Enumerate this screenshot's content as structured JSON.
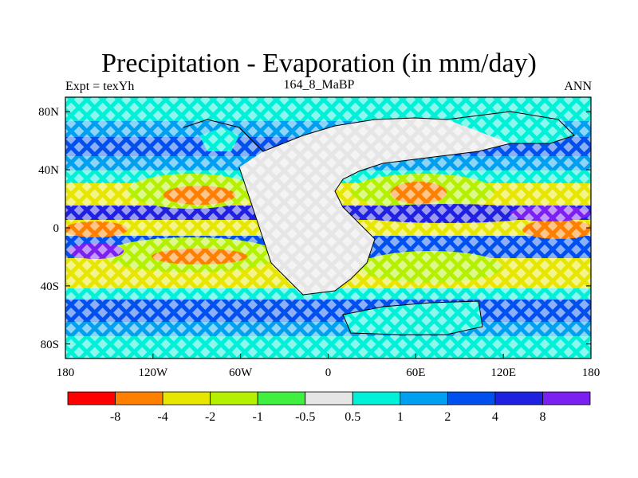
{
  "header": {
    "title": "Precipitation - Evaporation (in mm/day)",
    "left_label": "Expt = texYh",
    "center_label": "164_8_MaBP",
    "right_label": "ANN"
  },
  "map": {
    "lon_ticks": [
      "180",
      "120W",
      "60W",
      "0",
      "60E",
      "120E",
      "180"
    ],
    "lat_ticks": [
      "80N",
      "40N",
      "0",
      "40S",
      "80S"
    ],
    "lat_tick_values": [
      80,
      40,
      0,
      -40,
      -80
    ],
    "lon_tick_values": [
      -180,
      -120,
      -60,
      0,
      60,
      120,
      180
    ],
    "lon_range": [
      -180,
      180
    ],
    "lat_range": [
      -90,
      90
    ]
  },
  "colorbar": {
    "colors": [
      "#ff0000",
      "#ff8000",
      "#e6e600",
      "#b4f000",
      "#40f040",
      "#e6e6e6",
      "#00f0d8",
      "#00a0f0",
      "#0050f0",
      "#2020e0",
      "#7a20f0"
    ],
    "labels": [
      "-8",
      "-4",
      "-2",
      "-1",
      "-0.5",
      "0.5",
      "1",
      "2",
      "4",
      "8"
    ]
  }
}
